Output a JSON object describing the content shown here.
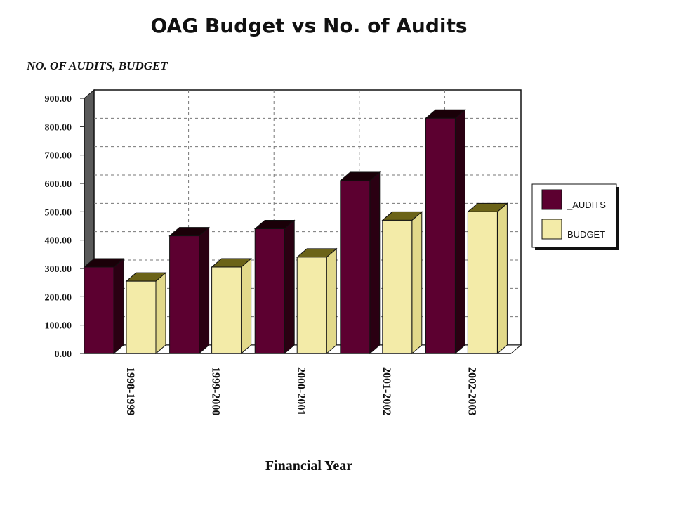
{
  "chart_data": {
    "type": "bar",
    "title": "OAG Budget vs No. of Audits",
    "ylabel": "NO. OF AUDITS, BUDGET",
    "xlabel": "Financial Year",
    "categories": [
      "1998-1999",
      "1999-2000",
      "2000-2001",
      "2001-2002",
      "2002-2003"
    ],
    "series": [
      {
        "name": "_AUDITS",
        "values": [
          305,
          415,
          440,
          610,
          830
        ]
      },
      {
        "name": "BUDGET",
        "values": [
          255,
          305,
          340,
          470,
          500
        ]
      }
    ],
    "ylim": [
      0,
      900
    ],
    "yticks": [
      "0.00",
      "100.00",
      "200.00",
      "300.00",
      "400.00",
      "500.00",
      "600.00",
      "700.00",
      "800.00",
      "900.00"
    ],
    "grid": true,
    "legend": "right",
    "colors": {
      "audits": "#5c0030",
      "budget": "#f3eba8"
    }
  }
}
